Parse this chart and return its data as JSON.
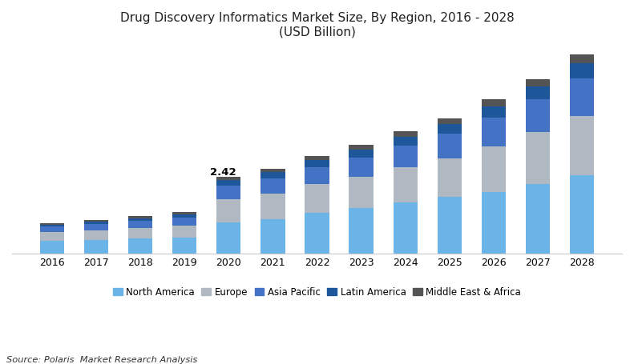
{
  "title": "Drug Discovery Informatics Market Size, By Region, 2016 - 2028\n(USD Billion)",
  "years": [
    2016,
    2017,
    2018,
    2019,
    2020,
    2021,
    2022,
    2023,
    2024,
    2025,
    2026,
    2027,
    2028
  ],
  "regions": [
    "North America",
    "Europe",
    "Asia Pacific",
    "Latin America",
    "Middle East & Africa"
  ],
  "colors": [
    "#6ab4e8",
    "#b0b8c1",
    "#4472c4",
    "#1e5799",
    "#545454"
  ],
  "data": {
    "North America": [
      0.4,
      0.44,
      0.48,
      0.52,
      1.0,
      1.1,
      1.28,
      1.45,
      1.62,
      1.8,
      1.95,
      2.2,
      2.48
    ],
    "Europe": [
      0.28,
      0.3,
      0.33,
      0.37,
      0.72,
      0.8,
      0.9,
      0.98,
      1.1,
      1.2,
      1.42,
      1.62,
      1.85
    ],
    "Asia Pacific": [
      0.18,
      0.2,
      0.22,
      0.25,
      0.42,
      0.47,
      0.54,
      0.6,
      0.68,
      0.76,
      0.9,
      1.02,
      1.18
    ],
    "Latin America": [
      0.06,
      0.07,
      0.09,
      0.1,
      0.18,
      0.2,
      0.22,
      0.25,
      0.28,
      0.31,
      0.36,
      0.41,
      0.47
    ],
    "Middle East & Africa": [
      0.04,
      0.05,
      0.06,
      0.07,
      0.1,
      0.11,
      0.13,
      0.14,
      0.16,
      0.18,
      0.21,
      0.24,
      0.27
    ]
  },
  "annotation_year": 2020,
  "annotation_value": "2.42",
  "source": "Source: Polaris  Market Research Analysis",
  "ylim": [
    0,
    6.5
  ],
  "background_color": "#ffffff",
  "bar_width": 0.55
}
